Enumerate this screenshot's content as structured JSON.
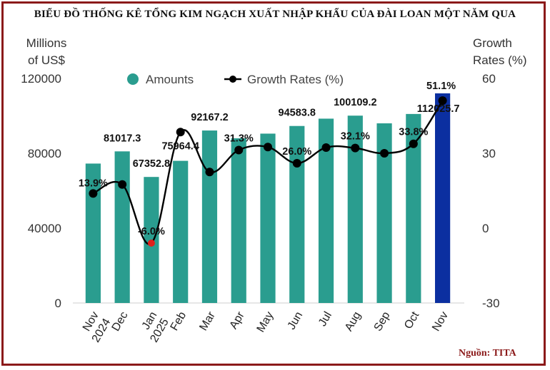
{
  "chart_data": {
    "type": "bar",
    "title": "BIỂU ĐỒ THỐNG KÊ TỔNG KIM NGẠCH XUẤT NHẬP KHẨU CỦA ĐÀI LOAN MỘT NĂM QUA",
    "source": "Nguồn: TITA",
    "ylabel_left": [
      "Millions",
      "of US$"
    ],
    "ylabel_right": [
      "Growth",
      "Rates (%)"
    ],
    "ylim_left": [
      0,
      120000
    ],
    "ylim_right": [
      -30,
      60
    ],
    "left_ticks": [
      "0",
      "40000",
      "80000",
      "120000"
    ],
    "right_ticks": [
      "-30",
      "0",
      "30",
      "60"
    ],
    "categories": [
      "Nov 2024",
      "Dec",
      "Jan 2025",
      "Feb",
      "Mar",
      "Apr",
      "May",
      "Jun",
      "Jul",
      "Aug",
      "Sep",
      "Oct",
      "Nov"
    ],
    "category_lines": [
      [
        "Nov",
        "2024"
      ],
      [
        "Dec"
      ],
      [
        "Jan",
        "2025"
      ],
      [
        "Feb"
      ],
      [
        "Mar"
      ],
      [
        "Apr"
      ],
      [
        "May"
      ],
      [
        "Jun"
      ],
      [
        "Jul"
      ],
      [
        "Aug"
      ],
      [
        "Sep"
      ],
      [
        "Oct"
      ],
      [
        "Nov"
      ]
    ],
    "series": [
      {
        "name": "Amounts",
        "type": "bar",
        "color": "#2a9d8f",
        "highlight_color": "#0b2fa0",
        "highlight_index": 12,
        "values": [
          74500,
          81017.3,
          67352.8,
          75964.4,
          92167.2,
          88000,
          90500,
          94583.8,
          98500,
          100109.2,
          96000,
          101000,
          112025.7
        ],
        "labels": [
          "",
          "81017.3",
          "67352.8",
          "75964.4",
          "92167.2",
          "",
          "",
          "94583.8",
          "",
          "100109.2",
          "",
          "",
          "112025.7"
        ]
      },
      {
        "name": "Growth Rates (%)",
        "type": "line",
        "color": "#000000",
        "negative_color": "#e0201b",
        "values": [
          13.9,
          17.5,
          -6.0,
          38.5,
          22.5,
          31.3,
          32.5,
          26.0,
          32.3,
          32.1,
          30.0,
          33.8,
          51.1
        ],
        "labels": [
          "13.9%",
          "",
          "-6.0%",
          "",
          "",
          "31.3%",
          "",
          "26.0%",
          "",
          "32.1%",
          "",
          "33.8%",
          "51.1%"
        ]
      }
    ],
    "legend": [
      "Amounts",
      "Growth Rates (%)"
    ],
    "legend_position": "top"
  }
}
